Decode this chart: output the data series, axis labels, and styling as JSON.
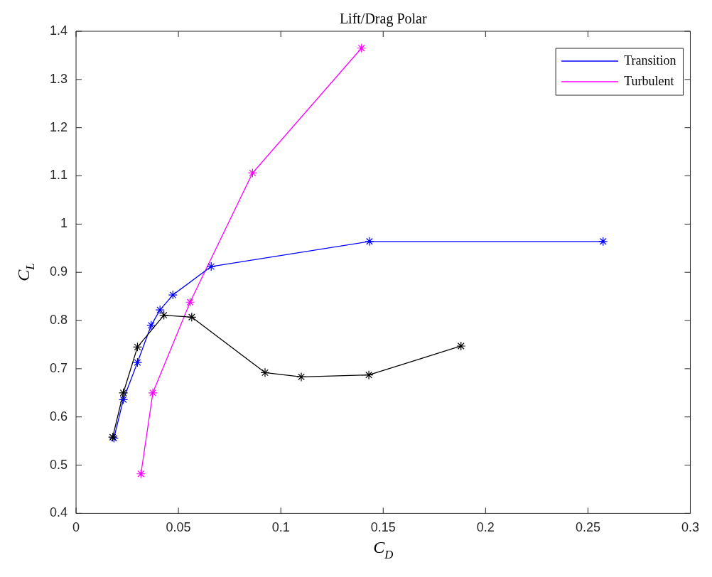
{
  "chart_data": {
    "type": "line",
    "title": "Lift/Drag Polar",
    "xlabel": "C$_{D}$",
    "ylabel": "C$_{L}$",
    "xlim": [
      0,
      0.3
    ],
    "xticks": [
      0,
      0.05,
      0.1,
      0.15,
      0.2,
      0.25,
      0.3
    ],
    "ylim": [
      0.4,
      1.4
    ],
    "yticks": [
      0.4,
      0.5,
      0.6,
      0.7,
      0.8,
      0.9,
      1,
      1.1,
      1.2,
      1.3,
      1.4
    ],
    "grid": false,
    "legend": "top right",
    "marker": "cross",
    "line_style": "solid",
    "series": [
      {
        "color": "#000000",
        "x": [
          0.0179,
          0.0231,
          0.03,
          0.0429,
          0.0565,
          0.0923,
          0.11,
          0.143,
          0.188
        ],
        "values": [
          0.558,
          0.65,
          0.745,
          0.811,
          0.807,
          0.692,
          0.683,
          0.687,
          0.747
        ]
      },
      {
        "name": "Transition",
        "color": "#0000ff",
        "x": [
          0.0185,
          0.0231,
          0.03,
          0.0367,
          0.041,
          0.0473,
          0.066,
          0.1433,
          0.2574
        ],
        "values": [
          0.556,
          0.636,
          0.713,
          0.79,
          0.822,
          0.853,
          0.912,
          0.964,
          0.964
        ]
      },
      {
        "name": "Turbulent",
        "color": "#ff00ff",
        "x": [
          0.0317,
          0.0375,
          0.0557,
          0.0862,
          0.1394
        ],
        "values": [
          0.482,
          0.65,
          0.838,
          1.106,
          1.365
        ]
      }
    ]
  }
}
